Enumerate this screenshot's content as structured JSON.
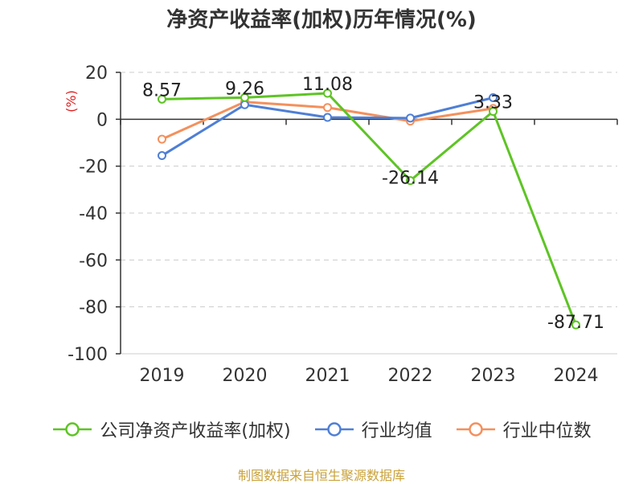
{
  "chart_data": {
    "type": "line",
    "title": "净资产收益率(加权)历年情况(%)",
    "ylabel": "(%)",
    "categories": [
      "2019",
      "2020",
      "2021",
      "2022",
      "2023",
      "2024"
    ],
    "ylim": [
      -100,
      20
    ],
    "yticks": [
      20,
      0,
      -20,
      -40,
      -60,
      -80,
      -100
    ],
    "grid": true,
    "legend_position": "bottom",
    "series": [
      {
        "name": "公司净资产收益率(加权)",
        "color": "#5ec425",
        "values": [
          8.57,
          9.26,
          11.08,
          -26.14,
          3.33,
          -87.71
        ],
        "labels": [
          "8.57",
          "9.26",
          "11.08",
          "-26.14",
          "3.33",
          "-87.71"
        ]
      },
      {
        "name": "行业均值",
        "color": "#4e7fd6",
        "values": [
          -15.5,
          6.2,
          0.8,
          0.5,
          9.2,
          null
        ]
      },
      {
        "name": "行业中位数",
        "color": "#f4905c",
        "values": [
          -8.5,
          7.4,
          5.0,
          -0.8,
          4.6,
          null
        ]
      }
    ]
  },
  "footer": {
    "source": "制图数据来自恒生聚源数据库"
  }
}
